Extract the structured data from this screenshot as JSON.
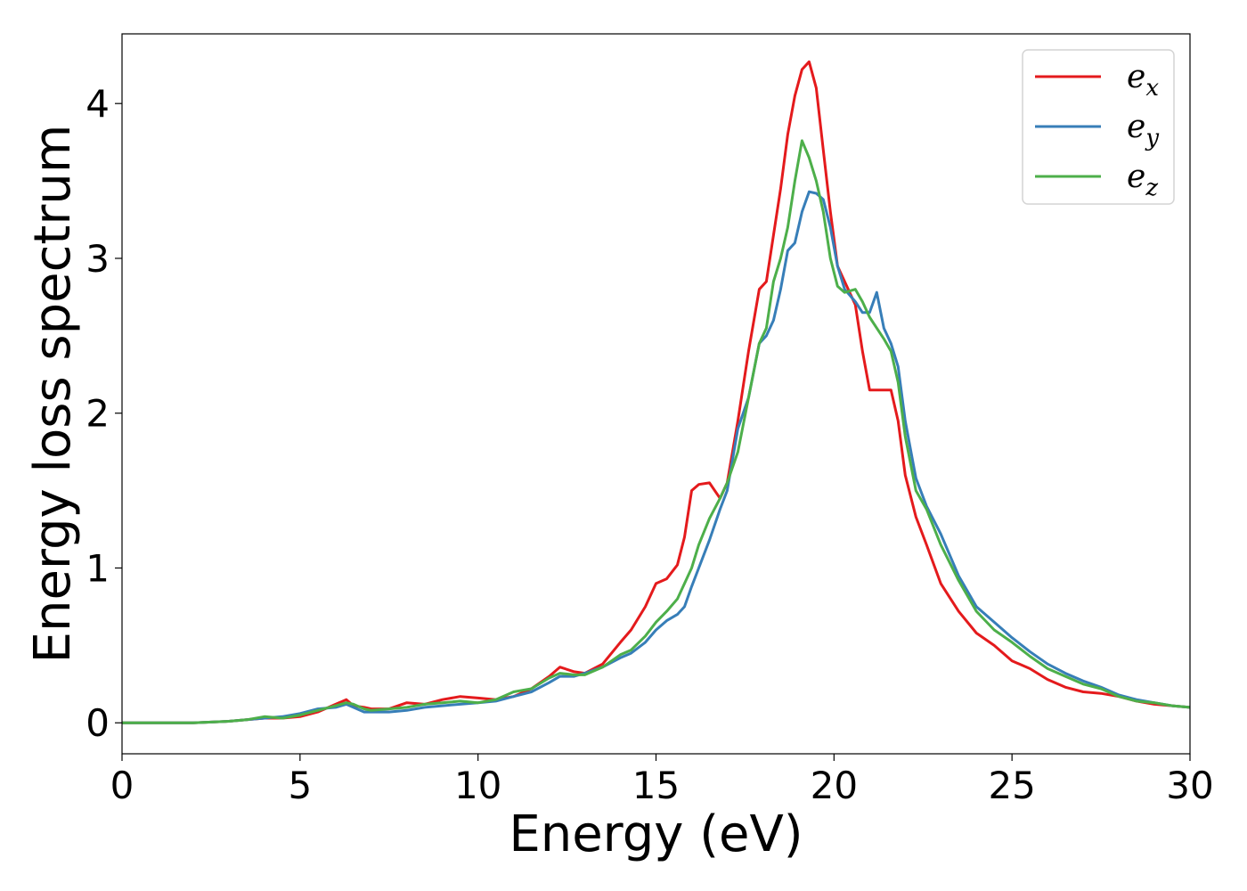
{
  "chart_data": {
    "type": "line",
    "title": "",
    "xlabel": "Energy (eV)",
    "ylabel": "Energy loss spectrum",
    "xlim": [
      0,
      30
    ],
    "ylim": [
      -0.2,
      4.45
    ],
    "xticks": [
      0,
      5,
      10,
      15,
      20,
      25,
      30
    ],
    "yticks": [
      0,
      1,
      2,
      3,
      4
    ],
    "grid": false,
    "legend_position": "top-right",
    "series": [
      {
        "name": "e",
        "subscript": "x",
        "color": "#e41a1c",
        "x": [
          0,
          1,
          2,
          3,
          3.5,
          4,
          4.5,
          5,
          5.5,
          6,
          6.3,
          6.5,
          6.8,
          7,
          7.5,
          8,
          8.5,
          9,
          9.5,
          10,
          10.5,
          11,
          11.5,
          12,
          12.3,
          12.7,
          13,
          13.5,
          14,
          14.3,
          14.7,
          15,
          15.3,
          15.6,
          15.8,
          16,
          16.2,
          16.5,
          16.8,
          17,
          17.3,
          17.6,
          17.9,
          18.1,
          18.3,
          18.5,
          18.7,
          18.9,
          19.1,
          19.3,
          19.5,
          19.7,
          19.9,
          20.1,
          20.3,
          20.6,
          20.8,
          21,
          21.2,
          21.4,
          21.6,
          21.8,
          22,
          22.3,
          22.6,
          23,
          23.5,
          24,
          24.5,
          25,
          25.5,
          26,
          26.5,
          27,
          27.5,
          28,
          28.5,
          29,
          29.5,
          30
        ],
        "y": [
          0.0,
          0.0,
          0.0,
          0.01,
          0.02,
          0.03,
          0.03,
          0.04,
          0.07,
          0.12,
          0.15,
          0.11,
          0.1,
          0.09,
          0.09,
          0.13,
          0.12,
          0.15,
          0.17,
          0.16,
          0.15,
          0.17,
          0.22,
          0.3,
          0.36,
          0.33,
          0.32,
          0.38,
          0.52,
          0.6,
          0.75,
          0.9,
          0.93,
          1.02,
          1.2,
          1.5,
          1.54,
          1.55,
          1.45,
          1.55,
          1.95,
          2.4,
          2.8,
          2.85,
          3.15,
          3.45,
          3.8,
          4.05,
          4.22,
          4.27,
          4.1,
          3.7,
          3.3,
          2.95,
          2.85,
          2.7,
          2.4,
          2.15,
          2.15,
          2.15,
          2.15,
          1.95,
          1.6,
          1.33,
          1.15,
          0.9,
          0.72,
          0.58,
          0.5,
          0.4,
          0.35,
          0.28,
          0.23,
          0.2,
          0.19,
          0.17,
          0.14,
          0.12,
          0.11,
          0.1
        ]
      },
      {
        "name": "e",
        "subscript": "y",
        "color": "#377eb8",
        "x": [
          0,
          1,
          2,
          3,
          3.5,
          4,
          4.5,
          5,
          5.5,
          6,
          6.3,
          6.5,
          6.8,
          7,
          7.5,
          8,
          8.5,
          9,
          9.5,
          10,
          10.5,
          11,
          11.5,
          12,
          12.3,
          12.7,
          13,
          13.5,
          14,
          14.3,
          14.7,
          15,
          15.3,
          15.6,
          15.8,
          16,
          16.2,
          16.5,
          16.8,
          17,
          17.3,
          17.6,
          17.9,
          18.1,
          18.3,
          18.5,
          18.7,
          18.9,
          19.1,
          19.3,
          19.5,
          19.7,
          19.9,
          20.1,
          20.3,
          20.6,
          20.8,
          21,
          21.2,
          21.4,
          21.6,
          21.8,
          22,
          22.3,
          22.6,
          23,
          23.5,
          24,
          24.5,
          25,
          25.5,
          26,
          26.5,
          27,
          27.5,
          28,
          28.5,
          29,
          29.5,
          30
        ],
        "y": [
          0.0,
          0.0,
          0.0,
          0.01,
          0.02,
          0.03,
          0.04,
          0.06,
          0.09,
          0.1,
          0.12,
          0.1,
          0.07,
          0.07,
          0.07,
          0.08,
          0.1,
          0.11,
          0.12,
          0.13,
          0.14,
          0.17,
          0.2,
          0.26,
          0.3,
          0.3,
          0.32,
          0.36,
          0.42,
          0.45,
          0.52,
          0.6,
          0.66,
          0.7,
          0.75,
          0.88,
          1.0,
          1.18,
          1.38,
          1.5,
          1.9,
          2.1,
          2.45,
          2.5,
          2.6,
          2.8,
          3.05,
          3.1,
          3.3,
          3.43,
          3.42,
          3.38,
          3.2,
          2.95,
          2.8,
          2.72,
          2.65,
          2.65,
          2.78,
          2.55,
          2.45,
          2.3,
          1.95,
          1.58,
          1.4,
          1.22,
          0.95,
          0.75,
          0.65,
          0.55,
          0.46,
          0.38,
          0.32,
          0.27,
          0.23,
          0.18,
          0.15,
          0.13,
          0.11,
          0.1
        ]
      },
      {
        "name": "e",
        "subscript": "z",
        "color": "#4daf4a",
        "x": [
          0,
          1,
          2,
          3,
          3.5,
          4,
          4.5,
          5,
          5.5,
          6,
          6.3,
          6.5,
          6.8,
          7,
          7.5,
          8,
          8.5,
          9,
          9.5,
          10,
          10.5,
          11,
          11.5,
          12,
          12.3,
          12.7,
          13,
          13.5,
          14,
          14.3,
          14.7,
          15,
          15.3,
          15.6,
          15.8,
          16,
          16.2,
          16.5,
          16.8,
          17,
          17.3,
          17.6,
          17.9,
          18.1,
          18.3,
          18.5,
          18.7,
          18.9,
          19.1,
          19.3,
          19.5,
          19.7,
          19.9,
          20.1,
          20.3,
          20.6,
          20.8,
          21,
          21.2,
          21.4,
          21.6,
          21.8,
          22,
          22.3,
          22.6,
          23,
          23.5,
          24,
          24.5,
          25,
          25.5,
          26,
          26.5,
          27,
          27.5,
          28,
          28.5,
          29,
          29.5,
          30
        ],
        "y": [
          0.0,
          0.0,
          0.0,
          0.01,
          0.02,
          0.04,
          0.03,
          0.05,
          0.08,
          0.11,
          0.13,
          0.12,
          0.09,
          0.08,
          0.09,
          0.1,
          0.12,
          0.13,
          0.14,
          0.13,
          0.15,
          0.2,
          0.22,
          0.29,
          0.32,
          0.31,
          0.31,
          0.36,
          0.44,
          0.47,
          0.56,
          0.65,
          0.72,
          0.8,
          0.9,
          1.0,
          1.15,
          1.32,
          1.45,
          1.55,
          1.75,
          2.1,
          2.45,
          2.55,
          2.85,
          3.0,
          3.2,
          3.5,
          3.76,
          3.65,
          3.5,
          3.3,
          3.0,
          2.82,
          2.78,
          2.8,
          2.72,
          2.62,
          2.55,
          2.48,
          2.4,
          2.2,
          1.85,
          1.5,
          1.38,
          1.15,
          0.92,
          0.72,
          0.6,
          0.52,
          0.43,
          0.35,
          0.3,
          0.25,
          0.22,
          0.17,
          0.14,
          0.13,
          0.11,
          0.1
        ]
      }
    ]
  }
}
